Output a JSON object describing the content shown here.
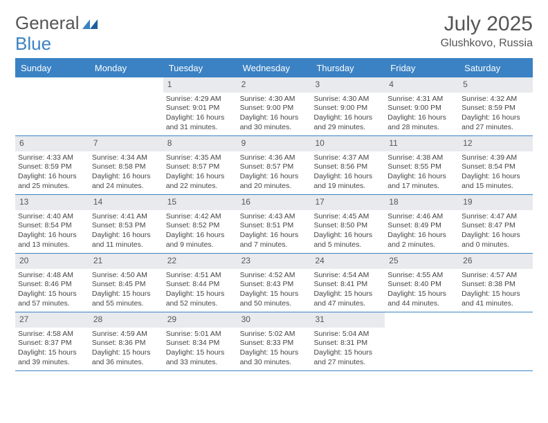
{
  "logo": {
    "text_general": "General",
    "text_blue": "Blue"
  },
  "title": {
    "month": "July 2025",
    "location": "Glushkovo, Russia"
  },
  "colors": {
    "header_bg": "#3b82c4",
    "header_text": "#ffffff",
    "daynum_bg": "#e8eaed",
    "body_text": "#444444",
    "title_text": "#555555",
    "rule": "#3b82c4",
    "page_bg": "#ffffff"
  },
  "day_headers": [
    "Sunday",
    "Monday",
    "Tuesday",
    "Wednesday",
    "Thursday",
    "Friday",
    "Saturday"
  ],
  "weeks": [
    [
      null,
      null,
      {
        "n": "1",
        "sunrise": "Sunrise: 4:29 AM",
        "sunset": "Sunset: 9:01 PM",
        "daylight": "Daylight: 16 hours and 31 minutes."
      },
      {
        "n": "2",
        "sunrise": "Sunrise: 4:30 AM",
        "sunset": "Sunset: 9:00 PM",
        "daylight": "Daylight: 16 hours and 30 minutes."
      },
      {
        "n": "3",
        "sunrise": "Sunrise: 4:30 AM",
        "sunset": "Sunset: 9:00 PM",
        "daylight": "Daylight: 16 hours and 29 minutes."
      },
      {
        "n": "4",
        "sunrise": "Sunrise: 4:31 AM",
        "sunset": "Sunset: 9:00 PM",
        "daylight": "Daylight: 16 hours and 28 minutes."
      },
      {
        "n": "5",
        "sunrise": "Sunrise: 4:32 AM",
        "sunset": "Sunset: 8:59 PM",
        "daylight": "Daylight: 16 hours and 27 minutes."
      }
    ],
    [
      {
        "n": "6",
        "sunrise": "Sunrise: 4:33 AM",
        "sunset": "Sunset: 8:59 PM",
        "daylight": "Daylight: 16 hours and 25 minutes."
      },
      {
        "n": "7",
        "sunrise": "Sunrise: 4:34 AM",
        "sunset": "Sunset: 8:58 PM",
        "daylight": "Daylight: 16 hours and 24 minutes."
      },
      {
        "n": "8",
        "sunrise": "Sunrise: 4:35 AM",
        "sunset": "Sunset: 8:57 PM",
        "daylight": "Daylight: 16 hours and 22 minutes."
      },
      {
        "n": "9",
        "sunrise": "Sunrise: 4:36 AM",
        "sunset": "Sunset: 8:57 PM",
        "daylight": "Daylight: 16 hours and 20 minutes."
      },
      {
        "n": "10",
        "sunrise": "Sunrise: 4:37 AM",
        "sunset": "Sunset: 8:56 PM",
        "daylight": "Daylight: 16 hours and 19 minutes."
      },
      {
        "n": "11",
        "sunrise": "Sunrise: 4:38 AM",
        "sunset": "Sunset: 8:55 PM",
        "daylight": "Daylight: 16 hours and 17 minutes."
      },
      {
        "n": "12",
        "sunrise": "Sunrise: 4:39 AM",
        "sunset": "Sunset: 8:54 PM",
        "daylight": "Daylight: 16 hours and 15 minutes."
      }
    ],
    [
      {
        "n": "13",
        "sunrise": "Sunrise: 4:40 AM",
        "sunset": "Sunset: 8:54 PM",
        "daylight": "Daylight: 16 hours and 13 minutes."
      },
      {
        "n": "14",
        "sunrise": "Sunrise: 4:41 AM",
        "sunset": "Sunset: 8:53 PM",
        "daylight": "Daylight: 16 hours and 11 minutes."
      },
      {
        "n": "15",
        "sunrise": "Sunrise: 4:42 AM",
        "sunset": "Sunset: 8:52 PM",
        "daylight": "Daylight: 16 hours and 9 minutes."
      },
      {
        "n": "16",
        "sunrise": "Sunrise: 4:43 AM",
        "sunset": "Sunset: 8:51 PM",
        "daylight": "Daylight: 16 hours and 7 minutes."
      },
      {
        "n": "17",
        "sunrise": "Sunrise: 4:45 AM",
        "sunset": "Sunset: 8:50 PM",
        "daylight": "Daylight: 16 hours and 5 minutes."
      },
      {
        "n": "18",
        "sunrise": "Sunrise: 4:46 AM",
        "sunset": "Sunset: 8:49 PM",
        "daylight": "Daylight: 16 hours and 2 minutes."
      },
      {
        "n": "19",
        "sunrise": "Sunrise: 4:47 AM",
        "sunset": "Sunset: 8:47 PM",
        "daylight": "Daylight: 16 hours and 0 minutes."
      }
    ],
    [
      {
        "n": "20",
        "sunrise": "Sunrise: 4:48 AM",
        "sunset": "Sunset: 8:46 PM",
        "daylight": "Daylight: 15 hours and 57 minutes."
      },
      {
        "n": "21",
        "sunrise": "Sunrise: 4:50 AM",
        "sunset": "Sunset: 8:45 PM",
        "daylight": "Daylight: 15 hours and 55 minutes."
      },
      {
        "n": "22",
        "sunrise": "Sunrise: 4:51 AM",
        "sunset": "Sunset: 8:44 PM",
        "daylight": "Daylight: 15 hours and 52 minutes."
      },
      {
        "n": "23",
        "sunrise": "Sunrise: 4:52 AM",
        "sunset": "Sunset: 8:43 PM",
        "daylight": "Daylight: 15 hours and 50 minutes."
      },
      {
        "n": "24",
        "sunrise": "Sunrise: 4:54 AM",
        "sunset": "Sunset: 8:41 PM",
        "daylight": "Daylight: 15 hours and 47 minutes."
      },
      {
        "n": "25",
        "sunrise": "Sunrise: 4:55 AM",
        "sunset": "Sunset: 8:40 PM",
        "daylight": "Daylight: 15 hours and 44 minutes."
      },
      {
        "n": "26",
        "sunrise": "Sunrise: 4:57 AM",
        "sunset": "Sunset: 8:38 PM",
        "daylight": "Daylight: 15 hours and 41 minutes."
      }
    ],
    [
      {
        "n": "27",
        "sunrise": "Sunrise: 4:58 AM",
        "sunset": "Sunset: 8:37 PM",
        "daylight": "Daylight: 15 hours and 39 minutes."
      },
      {
        "n": "28",
        "sunrise": "Sunrise: 4:59 AM",
        "sunset": "Sunset: 8:36 PM",
        "daylight": "Daylight: 15 hours and 36 minutes."
      },
      {
        "n": "29",
        "sunrise": "Sunrise: 5:01 AM",
        "sunset": "Sunset: 8:34 PM",
        "daylight": "Daylight: 15 hours and 33 minutes."
      },
      {
        "n": "30",
        "sunrise": "Sunrise: 5:02 AM",
        "sunset": "Sunset: 8:33 PM",
        "daylight": "Daylight: 15 hours and 30 minutes."
      },
      {
        "n": "31",
        "sunrise": "Sunrise: 5:04 AM",
        "sunset": "Sunset: 8:31 PM",
        "daylight": "Daylight: 15 hours and 27 minutes."
      },
      null,
      null
    ]
  ]
}
